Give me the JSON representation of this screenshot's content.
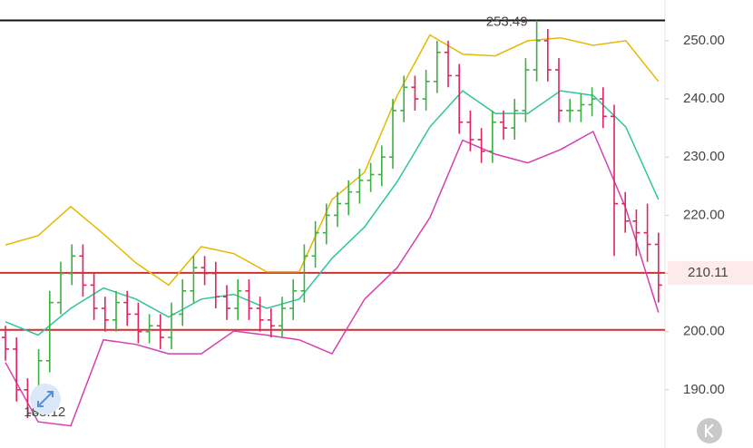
{
  "chart_data": {
    "type": "ohlc",
    "ylim": [
      180,
      257
    ],
    "yticks": [
      {
        "value": 190,
        "label": "190.00"
      },
      {
        "value": 200,
        "label": "200.00"
      },
      {
        "value": 210,
        "label": "210.00"
      },
      {
        "value": 220,
        "label": "220.00"
      },
      {
        "value": 230,
        "label": "230.00"
      },
      {
        "value": 240,
        "label": "240.00"
      },
      {
        "value": 250,
        "label": "250.00"
      }
    ],
    "up_color": "#3cb043",
    "down_color": "#e0245e",
    "open": [
      199,
      197,
      190,
      186,
      195,
      205,
      210,
      213,
      208,
      204,
      202,
      205,
      203,
      200,
      201,
      199,
      203,
      207,
      211,
      210,
      206,
      204,
      207,
      204,
      202,
      201,
      204,
      207,
      213,
      217,
      220,
      222,
      224,
      226,
      227,
      230,
      238,
      242,
      240,
      243,
      248,
      244,
      236,
      233,
      231,
      236,
      235,
      238,
      245,
      250,
      245,
      238,
      238,
      239,
      240,
      237,
      222,
      219,
      217,
      215
    ],
    "high": [
      201,
      199,
      192,
      197,
      207,
      212,
      215,
      215,
      210,
      206,
      207,
      207,
      205,
      203,
      203,
      205,
      209,
      213,
      213,
      212,
      208,
      209,
      209,
      206,
      204,
      206,
      209,
      215,
      219,
      222,
      224,
      226,
      228,
      229,
      232,
      240,
      244,
      244,
      245,
      250,
      250,
      246,
      238,
      235,
      238,
      238,
      240,
      247,
      253.49,
      252,
      247,
      240,
      241,
      242,
      242,
      239,
      224,
      221,
      222,
      217
    ],
    "low": [
      195,
      188,
      185.12,
      186,
      193,
      203,
      208,
      206,
      202,
      200,
      200,
      201,
      198,
      198,
      197,
      197,
      201,
      205,
      208,
      204,
      202,
      202,
      202,
      200,
      199,
      199,
      202,
      205,
      211,
      215,
      218,
      220,
      222,
      224,
      225,
      228,
      236,
      238,
      238,
      241,
      242,
      234,
      231,
      229,
      229,
      233,
      233,
      236,
      243,
      243,
      236,
      236,
      236,
      237,
      235,
      213,
      217,
      213,
      212,
      205
    ],
    "close": [
      197,
      190,
      186,
      195,
      205,
      210,
      213,
      208,
      204,
      202,
      205,
      203,
      200,
      201,
      199,
      203,
      207,
      211,
      210,
      206,
      204,
      207,
      204,
      202,
      201,
      204,
      207,
      213,
      217,
      220,
      222,
      224,
      226,
      227,
      230,
      238,
      242,
      240,
      243,
      248,
      244,
      236,
      233,
      231,
      236,
      235,
      238,
      245,
      250,
      245,
      238,
      238,
      239,
      240,
      237,
      222,
      219,
      217,
      215,
      208
    ],
    "bands": [
      {
        "color": "#e6b800",
        "values": [
          214.9,
          216.5,
          221.5,
          216.8,
          211.8,
          208,
          214.6,
          213.4,
          210.3,
          210.3,
          222.7,
          227.4,
          240.6,
          251,
          247.7,
          247.4,
          250,
          250.5,
          249.2,
          250,
          243
        ]
      },
      {
        "color": "#2ec4a0",
        "values": [
          201.7,
          199.4,
          204,
          207.5,
          205.6,
          202.5,
          205.6,
          206.4,
          204,
          205.6,
          212.6,
          218,
          225.8,
          235.2,
          241.4,
          237.5,
          237.5,
          241.4,
          240.6,
          235.2,
          222.7
        ]
      },
      {
        "color": "#d63fb0",
        "values": [
          194.7,
          184.5,
          183.8,
          198.6,
          197.8,
          196.2,
          196.2,
          200.1,
          199.4,
          198.6,
          196.2,
          205.6,
          211,
          219.6,
          232.9,
          230.5,
          229,
          231.3,
          234.4,
          221.2,
          203.3
        ]
      }
    ],
    "hlines": [
      {
        "value": 253.49,
        "color": "#111111"
      },
      {
        "value": 210.11,
        "color": "#d32f2f"
      },
      {
        "value": 200.3,
        "color": "#d32f2f"
      }
    ]
  }
}
